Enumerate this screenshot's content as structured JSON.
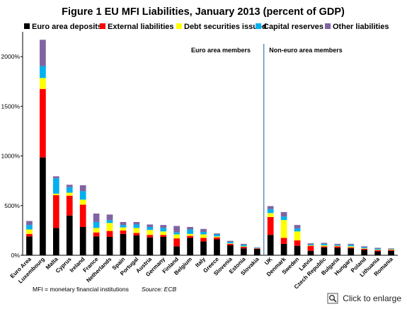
{
  "chart_data": {
    "type": "bar",
    "stacked": true,
    "title": "Figure 1 EU MFI Liabilities, January 2013  (percent of GDP)",
    "xlabel": "",
    "ylabel": "",
    "ylim": [
      0,
      2250
    ],
    "yticks": [
      0,
      500,
      1000,
      1500,
      2000
    ],
    "ytick_labels": [
      "0%",
      "500%",
      "1000%",
      "1500%",
      "2000%"
    ],
    "grid": false,
    "legend_position": "top",
    "categories": [
      "Euro Area",
      "Luxembourg",
      "Malta",
      "Cyprus",
      "Ireland",
      "France",
      "Netherlands",
      "Spain",
      "Portugal",
      "Austria",
      "Germany",
      "Finland",
      "Belgium",
      "Italy",
      "Greece",
      "Slovenia",
      "Estonia",
      "Slovakia",
      "UK",
      "Denmark",
      "Sweden",
      "Latvia",
      "Czech Republic",
      "Bulgaria",
      "Hungary",
      "Poland",
      "Lithuania",
      "Romania"
    ],
    "series": [
      {
        "name": "Euro area deposits",
        "color": "#000000",
        "values": [
          190,
          985,
          275,
          400,
          285,
          190,
          185,
          215,
          200,
          180,
          185,
          90,
          175,
          140,
          160,
          100,
          70,
          65,
          205,
          115,
          95,
          45,
          80,
          75,
          70,
          55,
          40,
          45
        ]
      },
      {
        "name": "External liabilities",
        "color": "#ff0000",
        "values": [
          25,
          690,
          330,
          200,
          225,
          40,
          60,
          35,
          25,
          25,
          20,
          80,
          20,
          35,
          20,
          15,
          15,
          5,
          180,
          60,
          55,
          50,
          10,
          15,
          10,
          10,
          10,
          10
        ]
      },
      {
        "name": "Debt securities issued",
        "color": "#ffff00",
        "values": [
          45,
          110,
          15,
          30,
          50,
          45,
          80,
          30,
          50,
          50,
          35,
          40,
          20,
          35,
          10,
          5,
          5,
          2,
          40,
          180,
          90,
          5,
          10,
          5,
          10,
          5,
          5,
          5
        ]
      },
      {
        "name": "Capital reserves",
        "color": "#00b0f0",
        "values": [
          45,
          120,
          155,
          55,
          85,
          60,
          30,
          25,
          35,
          30,
          35,
          20,
          45,
          25,
          20,
          15,
          15,
          5,
          40,
          35,
          30,
          10,
          15,
          10,
          15,
          10,
          10,
          5
        ]
      },
      {
        "name": "Other liabilities",
        "color": "#8064a2",
        "values": [
          40,
          265,
          20,
          25,
          60,
          85,
          55,
          30,
          25,
          25,
          30,
          65,
          25,
          30,
          10,
          10,
          10,
          3,
          30,
          45,
          35,
          10,
          10,
          10,
          10,
          10,
          10,
          5
        ]
      }
    ],
    "regions": [
      {
        "label": "Euro area members",
        "from": 0,
        "to": 17
      },
      {
        "label": "Non-euro area members",
        "from": 18,
        "to": 27
      }
    ],
    "separator_after_index": 17,
    "note": "MFI = monetary financial institutions",
    "source": "Source: ECB"
  },
  "ui": {
    "enlarge_label": "Click to enlarge",
    "enlarge_icon": "magnifier-icon"
  }
}
